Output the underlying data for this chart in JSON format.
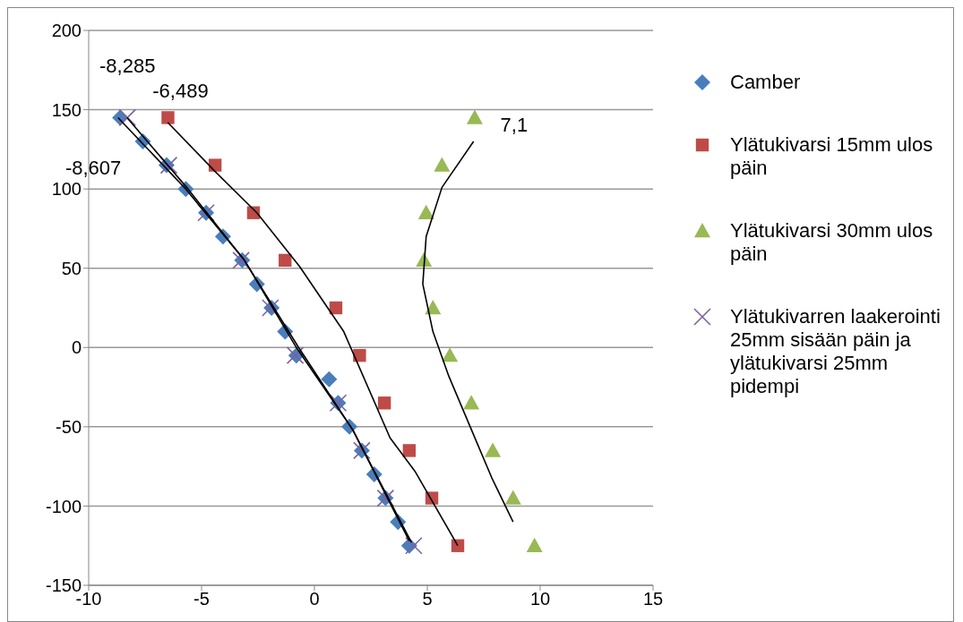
{
  "chart_data": {
    "type": "scatter",
    "xlim": [
      -10,
      15
    ],
    "xticks": [
      -10,
      -5,
      0,
      5,
      10,
      15
    ],
    "ylim": [
      -150,
      200
    ],
    "yticks": [
      -150,
      -100,
      -50,
      0,
      50,
      100,
      150,
      200
    ],
    "grid": "y",
    "legend": "right",
    "series": [
      {
        "name": "Camber",
        "color": "#4a7ebb",
        "marker": "diamond",
        "x": [
          -8.607,
          -7.6,
          -6.55,
          -5.7,
          -4.8,
          -4.05,
          -3.2,
          -2.55,
          -1.9,
          -1.3,
          -0.8,
          0.65,
          1.05,
          1.55,
          2.1,
          2.65,
          3.15,
          3.7,
          4.2
        ],
        "values": [
          145,
          130,
          115,
          100,
          85,
          70,
          55,
          40,
          25,
          10,
          -5,
          -20,
          -35,
          -50,
          -65,
          -80,
          -95,
          -110,
          -125
        ]
      },
      {
        "name": "Ylätukivarsi 15mm ulos päin",
        "color": "#be4b48",
        "marker": "square",
        "x": [
          -6.489,
          -4.4,
          -2.7,
          -1.3,
          0.95,
          2,
          3.1,
          4.2,
          5.2,
          6.35
        ],
        "values": [
          145,
          115,
          85,
          55,
          25,
          -5,
          -35,
          -65,
          -95,
          -125
        ]
      },
      {
        "name": "Ylätukivarsi 30mm ulos päin",
        "color": "#98b954",
        "marker": "triangle",
        "x": [
          7.1,
          5.65,
          4.95,
          4.85,
          5.25,
          6,
          6.95,
          7.9,
          8.8,
          9.75
        ],
        "values": [
          145,
          115,
          85,
          55,
          25,
          -5,
          -35,
          -65,
          -95,
          -125
        ]
      },
      {
        "name": "Ylätukivarren laakerointi 25mm sisään päin ja ylätukivarsi 25mm pidempi",
        "color": "#7d60a0",
        "marker": "cross",
        "x": [
          -8.285,
          -6.45,
          -4.8,
          -3.25,
          -1.95,
          -0.85,
          1.05,
          2.1,
          3.15,
          4.4
        ],
        "values": [
          145,
          115,
          85,
          55,
          25,
          -5,
          -35,
          -65,
          -95,
          -125
        ]
      },
      {
        "type": "line",
        "color": "#000000",
        "marker": "none",
        "x": [
          -8.7,
          -5.7,
          -3.1,
          -0.8,
          1.7,
          4.3
        ],
        "values": [
          145,
          100,
          55,
          0,
          -52,
          -123
        ]
      },
      {
        "type": "line",
        "color": "#000000",
        "marker": "none",
        "x": [
          -8.3,
          -5.6,
          -3.1,
          -0.7,
          1.7,
          4.2
        ],
        "values": [
          145,
          100,
          55,
          0,
          -52,
          -122
        ]
      },
      {
        "type": "line",
        "color": "#000000",
        "marker": "none",
        "x": [
          -6.5,
          -4.4,
          -2.55,
          -0.65,
          1.3,
          3.35,
          4.45,
          6.35
        ],
        "values": [
          142,
          111,
          85,
          51,
          10,
          -57,
          -78,
          -125
        ]
      },
      {
        "type": "line",
        "color": "#000000",
        "marker": "none",
        "x": [
          7.05,
          5.65,
          4.95,
          4.8,
          5.25,
          5.95,
          6.9,
          7.85,
          8.8
        ],
        "values": [
          130,
          101,
          70,
          40,
          10,
          -18,
          -50,
          -82,
          -110
        ]
      }
    ],
    "annotations": [
      {
        "text": "-8,607",
        "x": -8.607,
        "y": 145
      },
      {
        "text": "-8,285",
        "x": -8.285,
        "y": 145
      },
      {
        "text": "-6,489",
        "x": -6.489,
        "y": 145
      },
      {
        "text": "7,1",
        "x": 7.1,
        "y": 145
      }
    ]
  }
}
